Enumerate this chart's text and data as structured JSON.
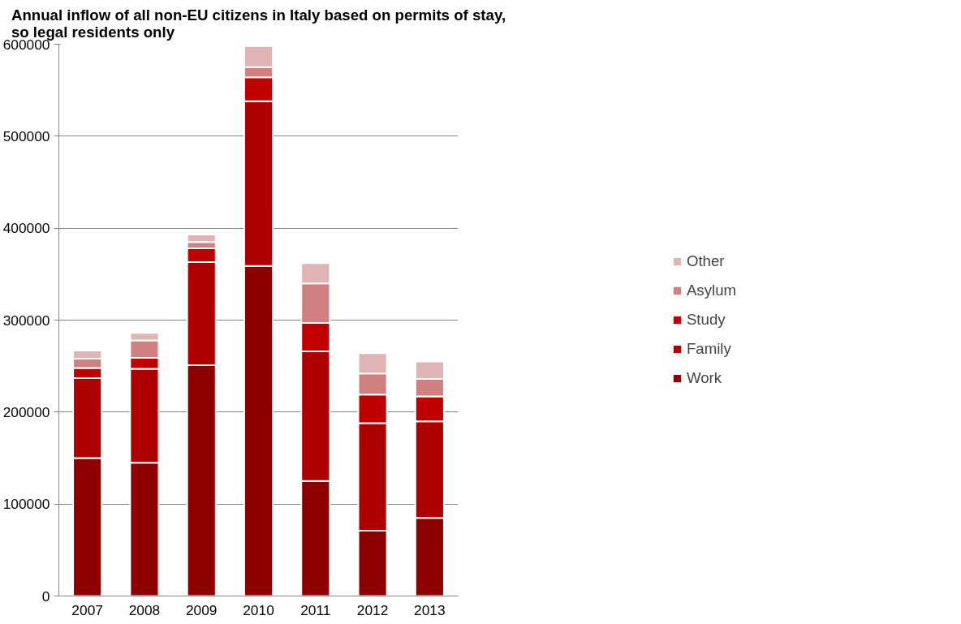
{
  "chart_data": {
    "type": "bar",
    "stacked": true,
    "title": "Annual inflow of all non-EU citizens in Italy based on permits of stay,\nso legal residents only",
    "categories": [
      "2007",
      "2008",
      "2009",
      "2010",
      "2011",
      "2012",
      "2013"
    ],
    "series": [
      {
        "name": "Work",
        "color": "#8e0000",
        "values": [
          150000,
          145000,
          251000,
          359000,
          125000,
          71000,
          85000
        ]
      },
      {
        "name": "Family",
        "color": "#ae0000",
        "values": [
          87000,
          102000,
          112000,
          179000,
          141000,
          117000,
          105000
        ]
      },
      {
        "name": "Study",
        "color": "#c00000",
        "values": [
          11000,
          12000,
          15000,
          26000,
          31000,
          31000,
          27000
        ]
      },
      {
        "name": "Asylum",
        "color": "#d08080",
        "values": [
          10000,
          19000,
          7000,
          11000,
          43000,
          23000,
          19000
        ]
      },
      {
        "name": "Other",
        "color": "#e0b4b4",
        "values": [
          9000,
          8000,
          8000,
          23000,
          22000,
          22000,
          19000
        ]
      }
    ],
    "ylim": [
      0,
      600000
    ],
    "yticks": [
      0,
      100000,
      200000,
      300000,
      400000,
      500000,
      600000
    ],
    "grid": "y",
    "legend": "right"
  }
}
